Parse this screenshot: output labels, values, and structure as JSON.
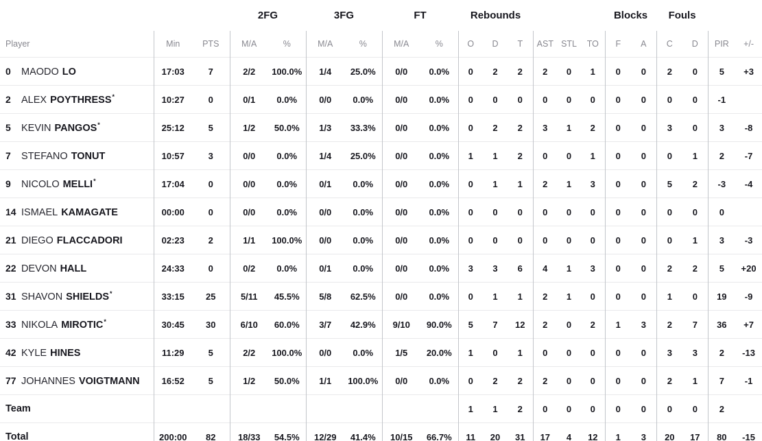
{
  "page": {
    "background": "#ffffff",
    "text_color": "#16161d",
    "muted_text_color": "#87878f",
    "vertical_divider_color": "#c2c5ca",
    "horizontal_divider_color": "#e9e9eb"
  },
  "table": {
    "group_headers": {
      "fg2": "2FG",
      "fg3": "3FG",
      "ft": "FT",
      "rebounds": "Rebounds",
      "blocks": "Blocks",
      "fouls": "Fouls"
    },
    "columns": {
      "player": "Player",
      "min": "Min",
      "pts": "PTS",
      "ma": "M/A",
      "pct": "%",
      "o": "O",
      "d": "D",
      "t": "T",
      "ast": "AST",
      "stl": "STL",
      "to": "TO",
      "f": "F",
      "a": "A",
      "c": "C",
      "pir": "PIR",
      "plus_minus": "+/-"
    },
    "starter_mark": "*",
    "rows": [
      {
        "number": "0",
        "first": "MAODO",
        "last": "LO",
        "starter": false,
        "min": "17:03",
        "pts": "7",
        "fg2_ma": "2/2",
        "fg2_pct": "100.0%",
        "fg3_ma": "1/4",
        "fg3_pct": "25.0%",
        "ft_ma": "0/0",
        "ft_pct": "0.0%",
        "reb_o": "0",
        "reb_d": "2",
        "reb_t": "2",
        "ast": "2",
        "stl": "0",
        "to": "1",
        "blk_f": "0",
        "blk_a": "0",
        "foul_c": "2",
        "foul_d": "0",
        "pir": "5",
        "plus_minus": "+3"
      },
      {
        "number": "2",
        "first": "ALEX",
        "last": "POYTHRESS",
        "starter": true,
        "min": "10:27",
        "pts": "0",
        "fg2_ma": "0/1",
        "fg2_pct": "0.0%",
        "fg3_ma": "0/0",
        "fg3_pct": "0.0%",
        "ft_ma": "0/0",
        "ft_pct": "0.0%",
        "reb_o": "0",
        "reb_d": "0",
        "reb_t": "0",
        "ast": "0",
        "stl": "0",
        "to": "0",
        "blk_f": "0",
        "blk_a": "0",
        "foul_c": "0",
        "foul_d": "0",
        "pir": "-1",
        "plus_minus": ""
      },
      {
        "number": "5",
        "first": "KEVIN",
        "last": "PANGOS",
        "starter": true,
        "min": "25:12",
        "pts": "5",
        "fg2_ma": "1/2",
        "fg2_pct": "50.0%",
        "fg3_ma": "1/3",
        "fg3_pct": "33.3%",
        "ft_ma": "0/0",
        "ft_pct": "0.0%",
        "reb_o": "0",
        "reb_d": "2",
        "reb_t": "2",
        "ast": "3",
        "stl": "1",
        "to": "2",
        "blk_f": "0",
        "blk_a": "0",
        "foul_c": "3",
        "foul_d": "0",
        "pir": "3",
        "plus_minus": "-8"
      },
      {
        "number": "7",
        "first": "STEFANO",
        "last": "TONUT",
        "starter": false,
        "min": "10:57",
        "pts": "3",
        "fg2_ma": "0/0",
        "fg2_pct": "0.0%",
        "fg3_ma": "1/4",
        "fg3_pct": "25.0%",
        "ft_ma": "0/0",
        "ft_pct": "0.0%",
        "reb_o": "1",
        "reb_d": "1",
        "reb_t": "2",
        "ast": "0",
        "stl": "0",
        "to": "1",
        "blk_f": "0",
        "blk_a": "0",
        "foul_c": "0",
        "foul_d": "1",
        "pir": "2",
        "plus_minus": "-7"
      },
      {
        "number": "9",
        "first": "NICOLO",
        "last": "MELLI",
        "starter": true,
        "min": "17:04",
        "pts": "0",
        "fg2_ma": "0/0",
        "fg2_pct": "0.0%",
        "fg3_ma": "0/1",
        "fg3_pct": "0.0%",
        "ft_ma": "0/0",
        "ft_pct": "0.0%",
        "reb_o": "0",
        "reb_d": "1",
        "reb_t": "1",
        "ast": "2",
        "stl": "1",
        "to": "3",
        "blk_f": "0",
        "blk_a": "0",
        "foul_c": "5",
        "foul_d": "2",
        "pir": "-3",
        "plus_minus": "-4"
      },
      {
        "number": "14",
        "first": "ISMAEL",
        "last": "KAMAGATE",
        "starter": false,
        "min": "00:00",
        "pts": "0",
        "fg2_ma": "0/0",
        "fg2_pct": "0.0%",
        "fg3_ma": "0/0",
        "fg3_pct": "0.0%",
        "ft_ma": "0/0",
        "ft_pct": "0.0%",
        "reb_o": "0",
        "reb_d": "0",
        "reb_t": "0",
        "ast": "0",
        "stl": "0",
        "to": "0",
        "blk_f": "0",
        "blk_a": "0",
        "foul_c": "0",
        "foul_d": "0",
        "pir": "0",
        "plus_minus": ""
      },
      {
        "number": "21",
        "first": "DIEGO",
        "last": "FLACCADORI",
        "starter": false,
        "min": "02:23",
        "pts": "2",
        "fg2_ma": "1/1",
        "fg2_pct": "100.0%",
        "fg3_ma": "0/0",
        "fg3_pct": "0.0%",
        "ft_ma": "0/0",
        "ft_pct": "0.0%",
        "reb_o": "0",
        "reb_d": "0",
        "reb_t": "0",
        "ast": "0",
        "stl": "0",
        "to": "0",
        "blk_f": "0",
        "blk_a": "0",
        "foul_c": "0",
        "foul_d": "1",
        "pir": "3",
        "plus_minus": "-3"
      },
      {
        "number": "22",
        "first": "DEVON",
        "last": "HALL",
        "starter": false,
        "min": "24:33",
        "pts": "0",
        "fg2_ma": "0/2",
        "fg2_pct": "0.0%",
        "fg3_ma": "0/1",
        "fg3_pct": "0.0%",
        "ft_ma": "0/0",
        "ft_pct": "0.0%",
        "reb_o": "3",
        "reb_d": "3",
        "reb_t": "6",
        "ast": "4",
        "stl": "1",
        "to": "3",
        "blk_f": "0",
        "blk_a": "0",
        "foul_c": "2",
        "foul_d": "2",
        "pir": "5",
        "plus_minus": "+20"
      },
      {
        "number": "31",
        "first": "SHAVON",
        "last": "SHIELDS",
        "starter": true,
        "min": "33:15",
        "pts": "25",
        "fg2_ma": "5/11",
        "fg2_pct": "45.5%",
        "fg3_ma": "5/8",
        "fg3_pct": "62.5%",
        "ft_ma": "0/0",
        "ft_pct": "0.0%",
        "reb_o": "0",
        "reb_d": "1",
        "reb_t": "1",
        "ast": "2",
        "stl": "1",
        "to": "0",
        "blk_f": "0",
        "blk_a": "0",
        "foul_c": "1",
        "foul_d": "0",
        "pir": "19",
        "plus_minus": "-9"
      },
      {
        "number": "33",
        "first": "NIKOLA",
        "last": "MIROTIC",
        "starter": true,
        "min": "30:45",
        "pts": "30",
        "fg2_ma": "6/10",
        "fg2_pct": "60.0%",
        "fg3_ma": "3/7",
        "fg3_pct": "42.9%",
        "ft_ma": "9/10",
        "ft_pct": "90.0%",
        "reb_o": "5",
        "reb_d": "7",
        "reb_t": "12",
        "ast": "2",
        "stl": "0",
        "to": "2",
        "blk_f": "1",
        "blk_a": "3",
        "foul_c": "2",
        "foul_d": "7",
        "pir": "36",
        "plus_minus": "+7"
      },
      {
        "number": "42",
        "first": "KYLE",
        "last": "HINES",
        "starter": false,
        "min": "11:29",
        "pts": "5",
        "fg2_ma": "2/2",
        "fg2_pct": "100.0%",
        "fg3_ma": "0/0",
        "fg3_pct": "0.0%",
        "ft_ma": "1/5",
        "ft_pct": "20.0%",
        "reb_o": "1",
        "reb_d": "0",
        "reb_t": "1",
        "ast": "0",
        "stl": "0",
        "to": "0",
        "blk_f": "0",
        "blk_a": "0",
        "foul_c": "3",
        "foul_d": "3",
        "pir": "2",
        "plus_minus": "-13"
      },
      {
        "number": "77",
        "first": "JOHANNES",
        "last": "VOIGTMANN",
        "starter": false,
        "min": "16:52",
        "pts": "5",
        "fg2_ma": "1/2",
        "fg2_pct": "50.0%",
        "fg3_ma": "1/1",
        "fg3_pct": "100.0%",
        "ft_ma": "0/0",
        "ft_pct": "0.0%",
        "reb_o": "0",
        "reb_d": "2",
        "reb_t": "2",
        "ast": "2",
        "stl": "0",
        "to": "0",
        "blk_f": "0",
        "blk_a": "0",
        "foul_c": "2",
        "foul_d": "1",
        "pir": "7",
        "plus_minus": "-1"
      },
      {
        "label": "Team",
        "min": "",
        "pts": "",
        "fg2_ma": "",
        "fg2_pct": "",
        "fg3_ma": "",
        "fg3_pct": "",
        "ft_ma": "",
        "ft_pct": "",
        "reb_o": "1",
        "reb_d": "1",
        "reb_t": "2",
        "ast": "0",
        "stl": "0",
        "to": "0",
        "blk_f": "0",
        "blk_a": "0",
        "foul_c": "0",
        "foul_d": "0",
        "pir": "2",
        "plus_minus": ""
      },
      {
        "label": "Total",
        "min": "200:00",
        "pts": "82",
        "fg2_ma": "18/33",
        "fg2_pct": "54.5%",
        "fg3_ma": "12/29",
        "fg3_pct": "41.4%",
        "ft_ma": "10/15",
        "ft_pct": "66.7%",
        "reb_o": "11",
        "reb_d": "20",
        "reb_t": "31",
        "ast": "17",
        "stl": "4",
        "to": "12",
        "blk_f": "1",
        "blk_a": "3",
        "foul_c": "20",
        "foul_d": "17",
        "pir": "80",
        "plus_minus": "-15"
      }
    ]
  }
}
